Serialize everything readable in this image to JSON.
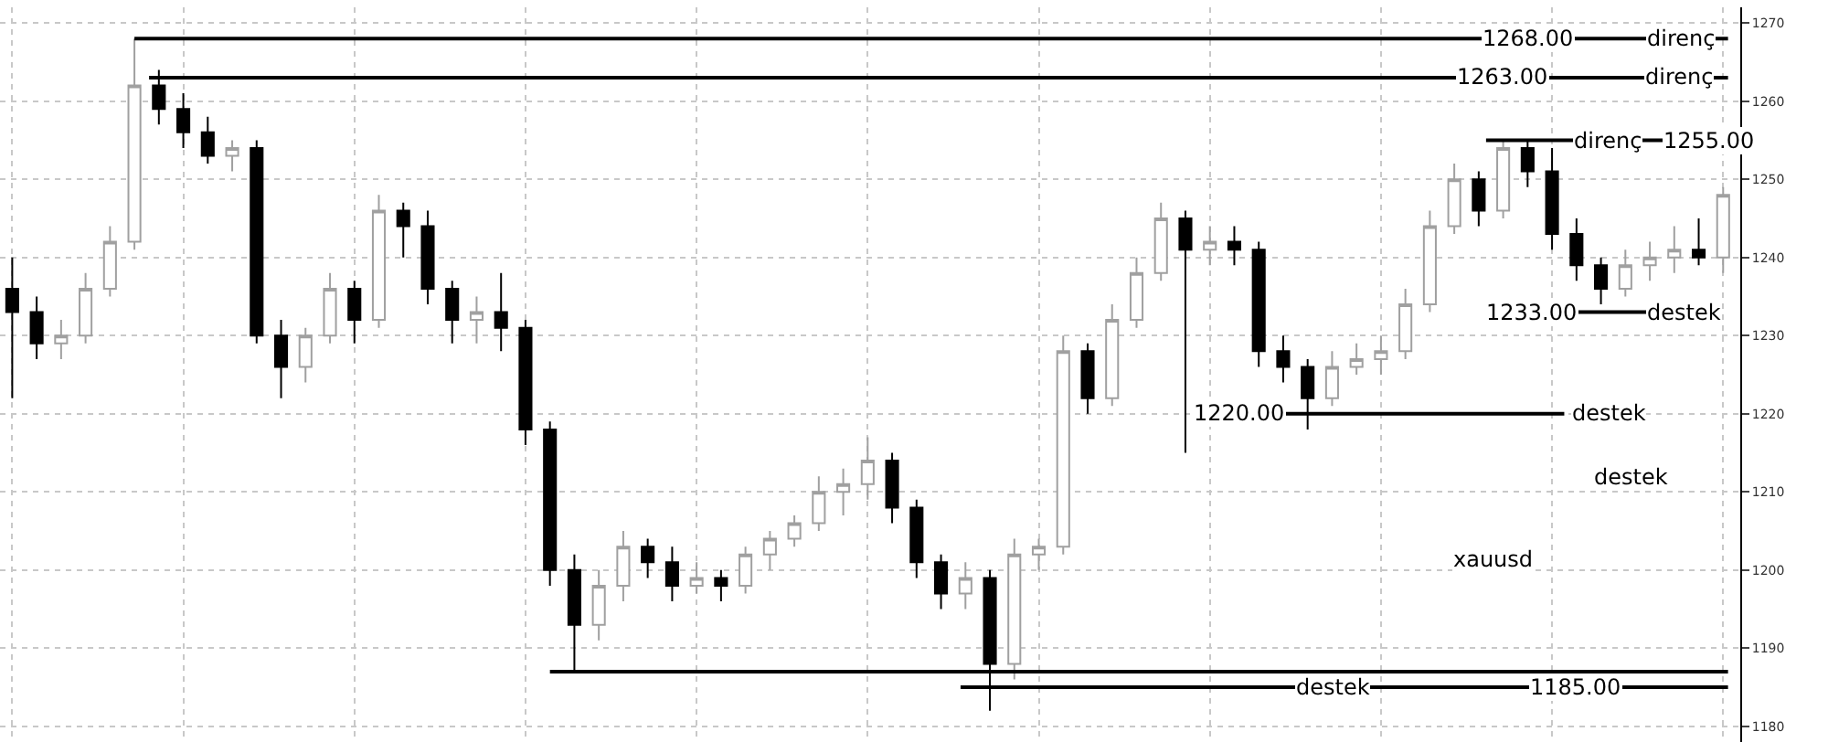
{
  "chart_data": {
    "type": "candlestick",
    "categories": [
      null,
      null,
      null,
      null,
      null,
      null,
      null,
      null,
      null,
      null,
      null,
      null,
      null,
      null,
      null,
      null,
      null,
      null,
      null,
      null,
      null,
      null,
      null,
      null,
      null,
      null,
      null,
      null,
      null,
      null,
      null,
      null,
      null,
      null,
      null,
      null,
      null,
      null,
      null,
      null,
      null,
      null,
      null,
      null,
      null,
      null,
      null,
      null,
      null,
      null,
      null,
      null,
      null,
      null,
      null,
      null,
      null,
      null,
      null,
      null,
      null,
      null,
      null,
      null,
      null,
      null,
      null,
      null,
      null,
      null,
      null
    ],
    "ohlc": [
      [
        1236,
        1240,
        1222,
        1233
      ],
      [
        1233,
        1235,
        1227,
        1229
      ],
      [
        1229,
        1232,
        1227,
        1230
      ],
      [
        1230,
        1238,
        1229,
        1236
      ],
      [
        1236,
        1244,
        1235,
        1242
      ],
      [
        1242,
        1268,
        1241,
        1262
      ],
      [
        1262,
        1264,
        1257,
        1259
      ],
      [
        1259,
        1261,
        1254,
        1256
      ],
      [
        1256,
        1258,
        1252,
        1253
      ],
      [
        1253,
        1255,
        1251,
        1254
      ],
      [
        1254,
        1255,
        1229,
        1230
      ],
      [
        1230,
        1232,
        1222,
        1226
      ],
      [
        1226,
        1231,
        1224,
        1230
      ],
      [
        1230,
        1238,
        1229,
        1236
      ],
      [
        1236,
        1237,
        1229,
        1232
      ],
      [
        1232,
        1248,
        1231,
        1246
      ],
      [
        1246,
        1247,
        1240,
        1244
      ],
      [
        1244,
        1246,
        1234,
        1236
      ],
      [
        1236,
        1237,
        1229,
        1232
      ],
      [
        1232,
        1235,
        1229,
        1233
      ],
      [
        1233,
        1238,
        1228,
        1231
      ],
      [
        1231,
        1232,
        1216,
        1218
      ],
      [
        1218,
        1219,
        1198,
        1200
      ],
      [
        1200,
        1202,
        1187,
        1193
      ],
      [
        1193,
        1200,
        1191,
        1198
      ],
      [
        1198,
        1205,
        1196,
        1203
      ],
      [
        1203,
        1204,
        1199,
        1201
      ],
      [
        1201,
        1203,
        1196,
        1198
      ],
      [
        1198,
        1201,
        1197,
        1199
      ],
      [
        1199,
        1200,
        1196,
        1198
      ],
      [
        1198,
        1203,
        1197,
        1202
      ],
      [
        1202,
        1205,
        1200,
        1204
      ],
      [
        1204,
        1207,
        1203,
        1206
      ],
      [
        1206,
        1212,
        1205,
        1210
      ],
      [
        1210,
        1213,
        1207,
        1211
      ],
      [
        1211,
        1217,
        1209,
        1214
      ],
      [
        1214,
        1215,
        1206,
        1208
      ],
      [
        1208,
        1209,
        1199,
        1201
      ],
      [
        1201,
        1202,
        1195,
        1197
      ],
      [
        1197,
        1201,
        1195,
        1199
      ],
      [
        1199,
        1200,
        1182,
        1188
      ],
      [
        1188,
        1204,
        1186,
        1202
      ],
      [
        1202,
        1204,
        1200,
        1203
      ],
      [
        1203,
        1230,
        1202,
        1228
      ],
      [
        1228,
        1229,
        1220,
        1222
      ],
      [
        1222,
        1234,
        1221,
        1232
      ],
      [
        1232,
        1240,
        1231,
        1238
      ],
      [
        1238,
        1247,
        1237,
        1245
      ],
      [
        1245,
        1246,
        1215,
        1241
      ],
      [
        1241,
        1244,
        1239,
        1242
      ],
      [
        1242,
        1244,
        1239,
        1241
      ],
      [
        1241,
        1242,
        1226,
        1228
      ],
      [
        1228,
        1230,
        1224,
        1226
      ],
      [
        1226,
        1227,
        1218,
        1222
      ],
      [
        1222,
        1228,
        1221,
        1226
      ],
      [
        1226,
        1229,
        1225,
        1227
      ],
      [
        1227,
        1230,
        1225,
        1228
      ],
      [
        1228,
        1236,
        1227,
        1234
      ],
      [
        1234,
        1246,
        1233,
        1244
      ],
      [
        1244,
        1252,
        1243,
        1250
      ],
      [
        1250,
        1251,
        1244,
        1246
      ],
      [
        1246,
        1255,
        1245,
        1254
      ],
      [
        1254,
        1255,
        1249,
        1251
      ],
      [
        1251,
        1254,
        1241,
        1243
      ],
      [
        1243,
        1245,
        1237,
        1239
      ],
      [
        1239,
        1240,
        1234,
        1236
      ],
      [
        1236,
        1241,
        1235,
        1239
      ],
      [
        1239,
        1242,
        1237,
        1240
      ],
      [
        1240,
        1244,
        1238,
        1241
      ],
      [
        1241,
        1245,
        1239,
        1240
      ],
      [
        1240,
        1249,
        1238,
        1248
      ]
    ],
    "colors": [
      "#000000",
      "#000000",
      "#a0a0a0",
      "#a0a0a0",
      "#a0a0a0",
      "#a0a0a0",
      "#000000",
      "#000000",
      "#000000",
      "#a0a0a0",
      "#000000",
      "#000000",
      "#a0a0a0",
      "#a0a0a0",
      "#000000",
      "#a0a0a0",
      "#000000",
      "#000000",
      "#000000",
      "#a0a0a0",
      "#000000",
      "#000000",
      "#000000",
      "#000000",
      "#a0a0a0",
      "#a0a0a0",
      "#000000",
      "#000000",
      "#a0a0a0",
      "#000000",
      "#a0a0a0",
      "#a0a0a0",
      "#a0a0a0",
      "#a0a0a0",
      "#a0a0a0",
      "#a0a0a0",
      "#000000",
      "#000000",
      "#000000",
      "#a0a0a0",
      "#000000",
      "#a0a0a0",
      "#a0a0a0",
      "#a0a0a0",
      "#000000",
      "#a0a0a0",
      "#a0a0a0",
      "#a0a0a0",
      "#000000",
      "#a0a0a0",
      "#000000",
      "#000000",
      "#000000",
      "#000000",
      "#a0a0a0",
      "#a0a0a0",
      "#a0a0a0",
      "#a0a0a0",
      "#a0a0a0",
      "#a0a0a0",
      "#000000",
      "#a0a0a0",
      "#000000",
      "#000000",
      "#000000",
      "#000000",
      "#a0a0a0",
      "#a0a0a0",
      "#a0a0a0",
      "#000000",
      "#a0a0a0"
    ],
    "ylim": [
      1178,
      1272
    ],
    "yticks": [
      1180,
      1190,
      1200,
      1210,
      1220,
      1230,
      1240,
      1250,
      1260,
      1270
    ],
    "tick_labels": "y",
    "grid": true,
    "legend": false,
    "ref_lines": [
      {
        "axis": "y",
        "value": 1268,
        "label": "1268.00",
        "color": "#000000"
      },
      {
        "axis": "y",
        "value": 1263,
        "label": "1263.00",
        "color": "#000000"
      },
      {
        "axis": "y",
        "value": 1255,
        "label": "1255.00",
        "color": "#000000"
      },
      {
        "axis": "y",
        "value": 1233,
        "label": "1233.00",
        "color": "#000000"
      },
      {
        "axis": "y",
        "value": 1220,
        "label": "1220.00",
        "color": "#000000"
      },
      {
        "axis": "y",
        "value": 1187,
        "label": null,
        "color": "#000000"
      },
      {
        "axis": "y",
        "value": 1185,
        "label": "1185.00",
        "color": "#000000"
      }
    ],
    "annotations": [
      {
        "text": "direnç",
        "y": 1268
      },
      {
        "text": "direnç",
        "y": 1263
      },
      {
        "text": "direnç",
        "y": 1255
      },
      {
        "text": "destek",
        "y": 1233
      },
      {
        "text": "destek",
        "y": 1220
      },
      "destek",
      "xauusd",
      {
        "text": "destek",
        "y": 1185
      }
    ]
  }
}
